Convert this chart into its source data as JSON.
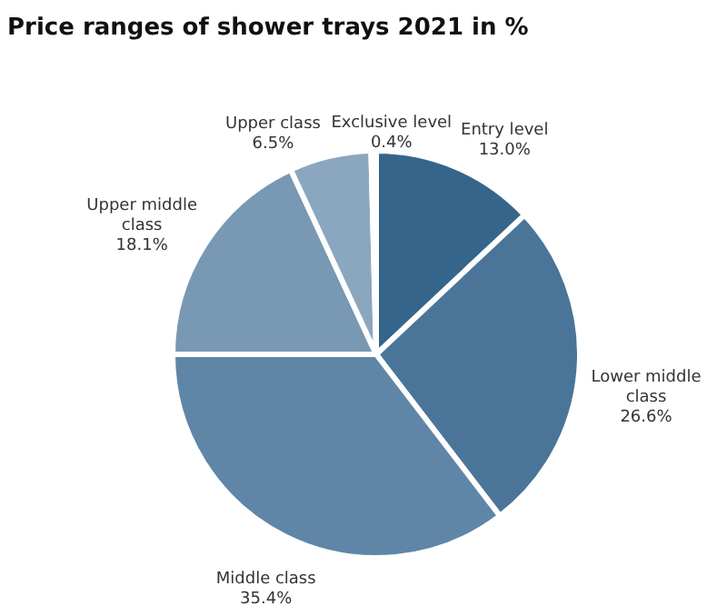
{
  "chart_data": {
    "type": "pie",
    "title": "Price ranges of shower trays 2021 in %",
    "categories": [
      "Entry level",
      "Lower middle class",
      "Middle class",
      "Upper middle class",
      "Upper class",
      "Exclusive level"
    ],
    "values": [
      13.0,
      26.6,
      35.4,
      18.1,
      6.5,
      0.4
    ],
    "colors": [
      "#36658c",
      "#4a7599",
      "#5f86a7",
      "#7898b3",
      "#8ba7bf",
      "#a3bace"
    ],
    "value_labels": [
      "13.0%",
      "26.6%",
      "35.4%",
      "18.1%",
      "6.5%",
      "0.4%"
    ]
  }
}
